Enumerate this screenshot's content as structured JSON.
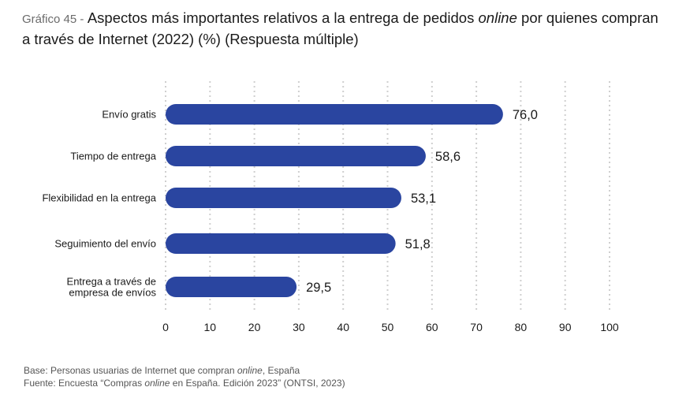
{
  "header": {
    "prefix": "Gráfico 45 -",
    "title_part1": "Aspectos más importantes relativos a la entrega de pedidos ",
    "title_italic": "online",
    "title_part2": " por quienes compran a través de Internet (2022) (%) (Respuesta múltiple)"
  },
  "footer": {
    "base_part1": "Base: Personas usuarias de Internet que compran ",
    "base_italic": "online",
    "base_part2": ", España",
    "source_part1": "Fuente: Encuesta “Compras ",
    "source_italic": "online",
    "source_part2": " en España. Edición 2023” (ONTSI, 2023)"
  },
  "colors": {
    "bar": "#2a45a0",
    "grid": "#cfcfcf",
    "text": "#1a1a1a"
  },
  "chart_data": {
    "type": "bar",
    "orientation": "horizontal",
    "categories": [
      [
        "Envío gratis"
      ],
      [
        "Tiempo de entrega"
      ],
      [
        "Flexibilidad en la entrega"
      ],
      [
        "Seguimiento del envío"
      ],
      [
        "Entrega a través de",
        "empresa de envíos"
      ]
    ],
    "values": [
      76.0,
      58.6,
      53.1,
      51.8,
      29.5
    ],
    "value_labels": [
      "76,0",
      "58,6",
      "53,1",
      "51,8",
      "29,5"
    ],
    "xlim": [
      0,
      100
    ],
    "xticks": [
      0,
      10,
      20,
      30,
      40,
      50,
      60,
      70,
      80,
      90,
      100
    ],
    "grid": true
  }
}
